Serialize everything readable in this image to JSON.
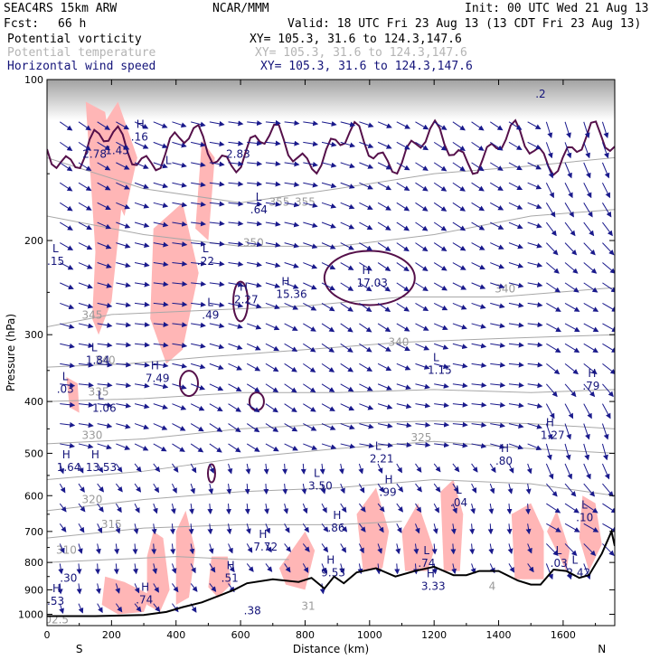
{
  "header": {
    "model": "SEAC4RS 15km ARW",
    "org": "NCAR/MMM",
    "init": "Init: 00 UTC Wed 21 Aug 13",
    "fcst_label": "Fcst:",
    "fcst_value": "66 h",
    "valid": "Valid: 18 UTC Fri 23 Aug 13 (13 CDT Fri 23 Aug 13)"
  },
  "fields": [
    {
      "name": "Potential vorticity",
      "xy": "XY= 105.3, 31.6 to 124.3,147.6"
    },
    {
      "name": "Potential temperature",
      "xy": "XY= 105.3, 31.6 to 124.3,147.6"
    },
    {
      "name": "Horizontal wind speed",
      "xy": "XY= 105.3, 31.6 to 124.3,147.6"
    }
  ],
  "chart_data": {
    "type": "cross-section",
    "ylabel": "Pressure (hPa)",
    "xlabel": "Distance (km)",
    "y_ticks": [
      100,
      200,
      300,
      400,
      500,
      600,
      700,
      800,
      900,
      1000
    ],
    "x_ticks": [
      0,
      200,
      400,
      600,
      800,
      1000,
      1200,
      1400,
      1600
    ],
    "xlim": [
      0,
      1760
    ],
    "ylim": [
      1050,
      100
    ],
    "y_scale": "log-pressure",
    "x_end_labels": {
      "left": "S",
      "right": "N"
    },
    "colors": {
      "pv_fill": "#ffb6b6",
      "pv_contour": "#55104a",
      "theta": "#a8a8a8",
      "wind": "#1a1a8c",
      "terrain": "#000000"
    },
    "terrain": [
      {
        "x": 0,
        "p": 1008
      },
      {
        "x": 150,
        "p": 1008
      },
      {
        "x": 300,
        "p": 1003
      },
      {
        "x": 370,
        "p": 990
      },
      {
        "x": 420,
        "p": 970
      },
      {
        "x": 480,
        "p": 950
      },
      {
        "x": 540,
        "p": 920
      },
      {
        "x": 580,
        "p": 900
      },
      {
        "x": 620,
        "p": 875
      },
      {
        "x": 700,
        "p": 860
      },
      {
        "x": 780,
        "p": 870
      },
      {
        "x": 820,
        "p": 855
      },
      {
        "x": 860,
        "p": 895
      },
      {
        "x": 890,
        "p": 850
      },
      {
        "x": 920,
        "p": 875
      },
      {
        "x": 960,
        "p": 835
      },
      {
        "x": 1020,
        "p": 820
      },
      {
        "x": 1080,
        "p": 850
      },
      {
        "x": 1140,
        "p": 830
      },
      {
        "x": 1200,
        "p": 815
      },
      {
        "x": 1260,
        "p": 845
      },
      {
        "x": 1300,
        "p": 845
      },
      {
        "x": 1340,
        "p": 830
      },
      {
        "x": 1400,
        "p": 830
      },
      {
        "x": 1460,
        "p": 865
      },
      {
        "x": 1500,
        "p": 880
      },
      {
        "x": 1530,
        "p": 880
      },
      {
        "x": 1570,
        "p": 825
      },
      {
        "x": 1610,
        "p": 830
      },
      {
        "x": 1650,
        "p": 855
      },
      {
        "x": 1680,
        "p": 845
      },
      {
        "x": 1720,
        "p": 770
      },
      {
        "x": 1750,
        "p": 700
      },
      {
        "x": 1760,
        "p": 745
      }
    ],
    "theta_contours": [
      {
        "label": "355",
        "lx": 720,
        "lp": 172,
        "pts": [
          [
            0,
            140
          ],
          [
            300,
            160
          ],
          [
            600,
            170
          ],
          [
            900,
            160
          ],
          [
            1200,
            150
          ],
          [
            1500,
            145
          ],
          [
            1760,
            140
          ]
        ]
      },
      {
        "label": "350",
        "lx": 640,
        "lp": 205,
        "pts": [
          [
            0,
            180
          ],
          [
            300,
            195
          ],
          [
            600,
            205
          ],
          [
            900,
            205
          ],
          [
            1200,
            195
          ],
          [
            1500,
            180
          ],
          [
            1760,
            175
          ]
        ]
      },
      {
        "label": "345",
        "lx": 140,
        "lp": 280,
        "pts": [
          [
            0,
            290
          ],
          [
            200,
            275
          ],
          [
            500,
            270
          ],
          [
            800,
            265
          ],
          [
            1100,
            255
          ],
          [
            1400,
            255
          ],
          [
            1760,
            245
          ]
        ]
      },
      {
        "label": "340",
        "lx": 180,
        "lp": 340,
        "pts": [
          [
            0,
            345
          ],
          [
            250,
            340
          ],
          [
            500,
            330
          ],
          [
            800,
            320
          ],
          [
            1100,
            310
          ],
          [
            1400,
            305
          ],
          [
            1760,
            300
          ]
        ]
      },
      {
        "label": "335",
        "lx": 160,
        "lp": 390,
        "pts": [
          [
            0,
            400
          ],
          [
            300,
            395
          ],
          [
            600,
            385
          ],
          [
            900,
            385
          ],
          [
            1200,
            380
          ],
          [
            1500,
            385
          ],
          [
            1760,
            380
          ]
        ]
      },
      {
        "label": "330",
        "lx": 140,
        "lp": 470,
        "pts": [
          [
            0,
            480
          ],
          [
            300,
            470
          ],
          [
            600,
            450
          ],
          [
            900,
            440
          ],
          [
            1200,
            435
          ],
          [
            1500,
            440
          ],
          [
            1760,
            450
          ]
        ]
      },
      {
        "label": "325",
        "lx": 1160,
        "lp": 475,
        "pts": [
          [
            0,
            560
          ],
          [
            300,
            540
          ],
          [
            600,
            510
          ],
          [
            900,
            490
          ],
          [
            1200,
            475
          ],
          [
            1500,
            490
          ],
          [
            1760,
            500
          ]
        ]
      },
      {
        "label": "320",
        "lx": 140,
        "lp": 620,
        "pts": [
          [
            0,
            640
          ],
          [
            300,
            610
          ],
          [
            600,
            590
          ],
          [
            900,
            580
          ],
          [
            1200,
            560
          ],
          [
            1500,
            570
          ],
          [
            1760,
            600
          ]
        ]
      },
      {
        "label": "315",
        "lx": 200,
        "lp": 690,
        "pts": [
          [
            0,
            720
          ],
          [
            300,
            690
          ],
          [
            600,
            680
          ],
          [
            900,
            680
          ],
          [
            1100,
            670
          ]
        ]
      },
      {
        "label": "310",
        "lx": 60,
        "lp": 770,
        "pts": [
          [
            0,
            800
          ],
          [
            200,
            790
          ],
          [
            400,
            780
          ],
          [
            600,
            790
          ],
          [
            750,
            790
          ]
        ]
      }
    ],
    "pv_contour_labels": [
      {
        "x": 1530,
        "p": 108,
        "label": ".2"
      }
    ],
    "pv_shaded": [
      [
        [
          120,
          110
        ],
        [
          180,
          115
        ],
        [
          230,
          175
        ],
        [
          200,
          260
        ],
        [
          160,
          300
        ],
        [
          140,
          280
        ],
        [
          150,
          210
        ]
      ],
      [
        [
          330,
          190
        ],
        [
          420,
          170
        ],
        [
          470,
          230
        ],
        [
          420,
          320
        ],
        [
          370,
          340
        ],
        [
          320,
          280
        ]
      ],
      [
        [
          480,
          130
        ],
        [
          520,
          140
        ],
        [
          500,
          200
        ],
        [
          460,
          190
        ]
      ],
      [
        [
          180,
          120
        ],
        [
          220,
          110
        ],
        [
          280,
          140
        ],
        [
          240,
          180
        ],
        [
          200,
          160
        ]
      ],
      [
        [
          60,
          360
        ],
        [
          95,
          370
        ],
        [
          100,
          420
        ],
        [
          70,
          410
        ]
      ],
      [
        [
          180,
          850
        ],
        [
          240,
          870
        ],
        [
          320,
          920
        ],
        [
          300,
          990
        ],
        [
          220,
          1000
        ],
        [
          170,
          960
        ]
      ],
      [
        [
          330,
          700
        ],
        [
          360,
          720
        ],
        [
          380,
          900
        ],
        [
          350,
          990
        ],
        [
          310,
          960
        ],
        [
          310,
          780
        ]
      ],
      [
        [
          400,
          700
        ],
        [
          430,
          640
        ],
        [
          460,
          760
        ],
        [
          440,
          930
        ],
        [
          400,
          960
        ]
      ],
      [
        [
          510,
          780
        ],
        [
          560,
          780
        ],
        [
          570,
          880
        ],
        [
          530,
          930
        ],
        [
          500,
          890
        ]
      ],
      [
        [
          720,
          820
        ],
        [
          800,
          700
        ],
        [
          830,
          760
        ],
        [
          800,
          900
        ],
        [
          740,
          880
        ]
      ],
      [
        [
          960,
          650
        ],
        [
          1020,
          580
        ],
        [
          1060,
          700
        ],
        [
          1040,
          820
        ],
        [
          980,
          830
        ]
      ],
      [
        [
          1100,
          700
        ],
        [
          1150,
          620
        ],
        [
          1200,
          760
        ],
        [
          1180,
          830
        ],
        [
          1110,
          830
        ]
      ],
      [
        [
          1220,
          590
        ],
        [
          1260,
          560
        ],
        [
          1290,
          650
        ],
        [
          1280,
          830
        ],
        [
          1230,
          830
        ]
      ],
      [
        [
          1440,
          650
        ],
        [
          1500,
          620
        ],
        [
          1540,
          700
        ],
        [
          1540,
          860
        ],
        [
          1450,
          860
        ]
      ],
      [
        [
          1550,
          700
        ],
        [
          1580,
          640
        ],
        [
          1620,
          760
        ],
        [
          1610,
          830
        ]
      ],
      [
        [
          1660,
          600
        ],
        [
          1700,
          620
        ],
        [
          1720,
          740
        ],
        [
          1680,
          830
        ],
        [
          1650,
          720
        ]
      ]
    ],
    "hl_labels": [
      {
        "x": 110,
        "p": 140,
        "kind": "",
        "value": "2.78"
      },
      {
        "x": 180,
        "p": 138,
        "kind": "",
        "value": "1.45"
      },
      {
        "x": 260,
        "p": 130,
        "kind": "H",
        "value": ".16"
      },
      {
        "x": 350,
        "p": 152,
        "kind": "L",
        "value": ""
      },
      {
        "x": 555,
        "p": 140,
        "kind": "",
        "value": "2.83"
      },
      {
        "x": 630,
        "p": 178,
        "kind": "L",
        "value": ".64"
      },
      {
        "x": 0,
        "p": 222,
        "kind": "L",
        "value": ".15"
      },
      {
        "x": 465,
        "p": 222,
        "kind": "L",
        "value": ".22"
      },
      {
        "x": 580,
        "p": 262,
        "kind": "H",
        "value": "2.27"
      },
      {
        "x": 710,
        "p": 256,
        "kind": "H",
        "value": "15.36"
      },
      {
        "x": 960,
        "p": 244,
        "kind": "H",
        "value": "17.03"
      },
      {
        "x": 480,
        "p": 280,
        "kind": "L",
        "value": ".49"
      },
      {
        "x": 120,
        "p": 340,
        "kind": "L",
        "value": "1.84"
      },
      {
        "x": 305,
        "p": 368,
        "kind": "H",
        "value": "7.49"
      },
      {
        "x": 1180,
        "p": 355,
        "kind": "L",
        "value": "1.15"
      },
      {
        "x": 30,
        "p": 385,
        "kind": "L",
        "value": ".03"
      },
      {
        "x": 140,
        "p": 418,
        "kind": "L",
        "value": "1.06"
      },
      {
        "x": 1660,
        "p": 380,
        "kind": "H",
        "value": ".79"
      },
      {
        "x": 1530,
        "p": 470,
        "kind": "H",
        "value": "1.27"
      },
      {
        "x": 1000,
        "p": 520,
        "kind": "L",
        "value": "2.21"
      },
      {
        "x": 1390,
        "p": 525,
        "kind": "H",
        "value": ".80"
      },
      {
        "x": 30,
        "p": 540,
        "kind": "H",
        "value": "1.64"
      },
      {
        "x": 120,
        "p": 540,
        "kind": "H",
        "value": "13.53"
      },
      {
        "x": 810,
        "p": 585,
        "kind": "L",
        "value": "3.50"
      },
      {
        "x": 1030,
        "p": 600,
        "kind": "H",
        "value": ".99"
      },
      {
        "x": 1250,
        "p": 628,
        "kind": "L",
        "value": ".04"
      },
      {
        "x": 1640,
        "p": 670,
        "kind": "L",
        "value": ".10"
      },
      {
        "x": 870,
        "p": 700,
        "kind": "H",
        "value": ".86"
      },
      {
        "x": 640,
        "p": 760,
        "kind": "H",
        "value": "7.72"
      },
      {
        "x": 1150,
        "p": 815,
        "kind": "L",
        "value": ".74"
      },
      {
        "x": 1560,
        "p": 815,
        "kind": "L",
        "value": ".03"
      },
      {
        "x": 850,
        "p": 850,
        "kind": "H",
        "value": "9.53"
      },
      {
        "x": 1610,
        "p": 850,
        "kind": "L",
        "value": "2.42"
      },
      {
        "x": 540,
        "p": 870,
        "kind": "H",
        "value": ".51"
      },
      {
        "x": 40,
        "p": 870,
        "kind": "",
        "value": ".30"
      },
      {
        "x": 1160,
        "p": 900,
        "kind": "H",
        "value": "3.33"
      },
      {
        "x": 0,
        "p": 960,
        "kind": "H",
        "value": ".53"
      },
      {
        "x": 275,
        "p": 955,
        "kind": "H",
        "value": ".74"
      },
      {
        "x": 610,
        "p": 1000,
        "kind": "",
        "value": ".38"
      }
    ],
    "theta_small_labels": [
      {
        "x": 800,
        "p": 172,
        "value": "355"
      },
      {
        "x": 1090,
        "p": 315,
        "value": "340"
      },
      {
        "x": 1420,
        "p": 250,
        "value": "340"
      },
      {
        "x": 810,
        "p": 980,
        "value": "31"
      },
      {
        "x": 1380,
        "p": 900,
        "value": "4"
      },
      {
        "x": 30,
        "p": 1040,
        "value": "02.5"
      }
    ],
    "wind_note": "vector field (arrows)"
  }
}
